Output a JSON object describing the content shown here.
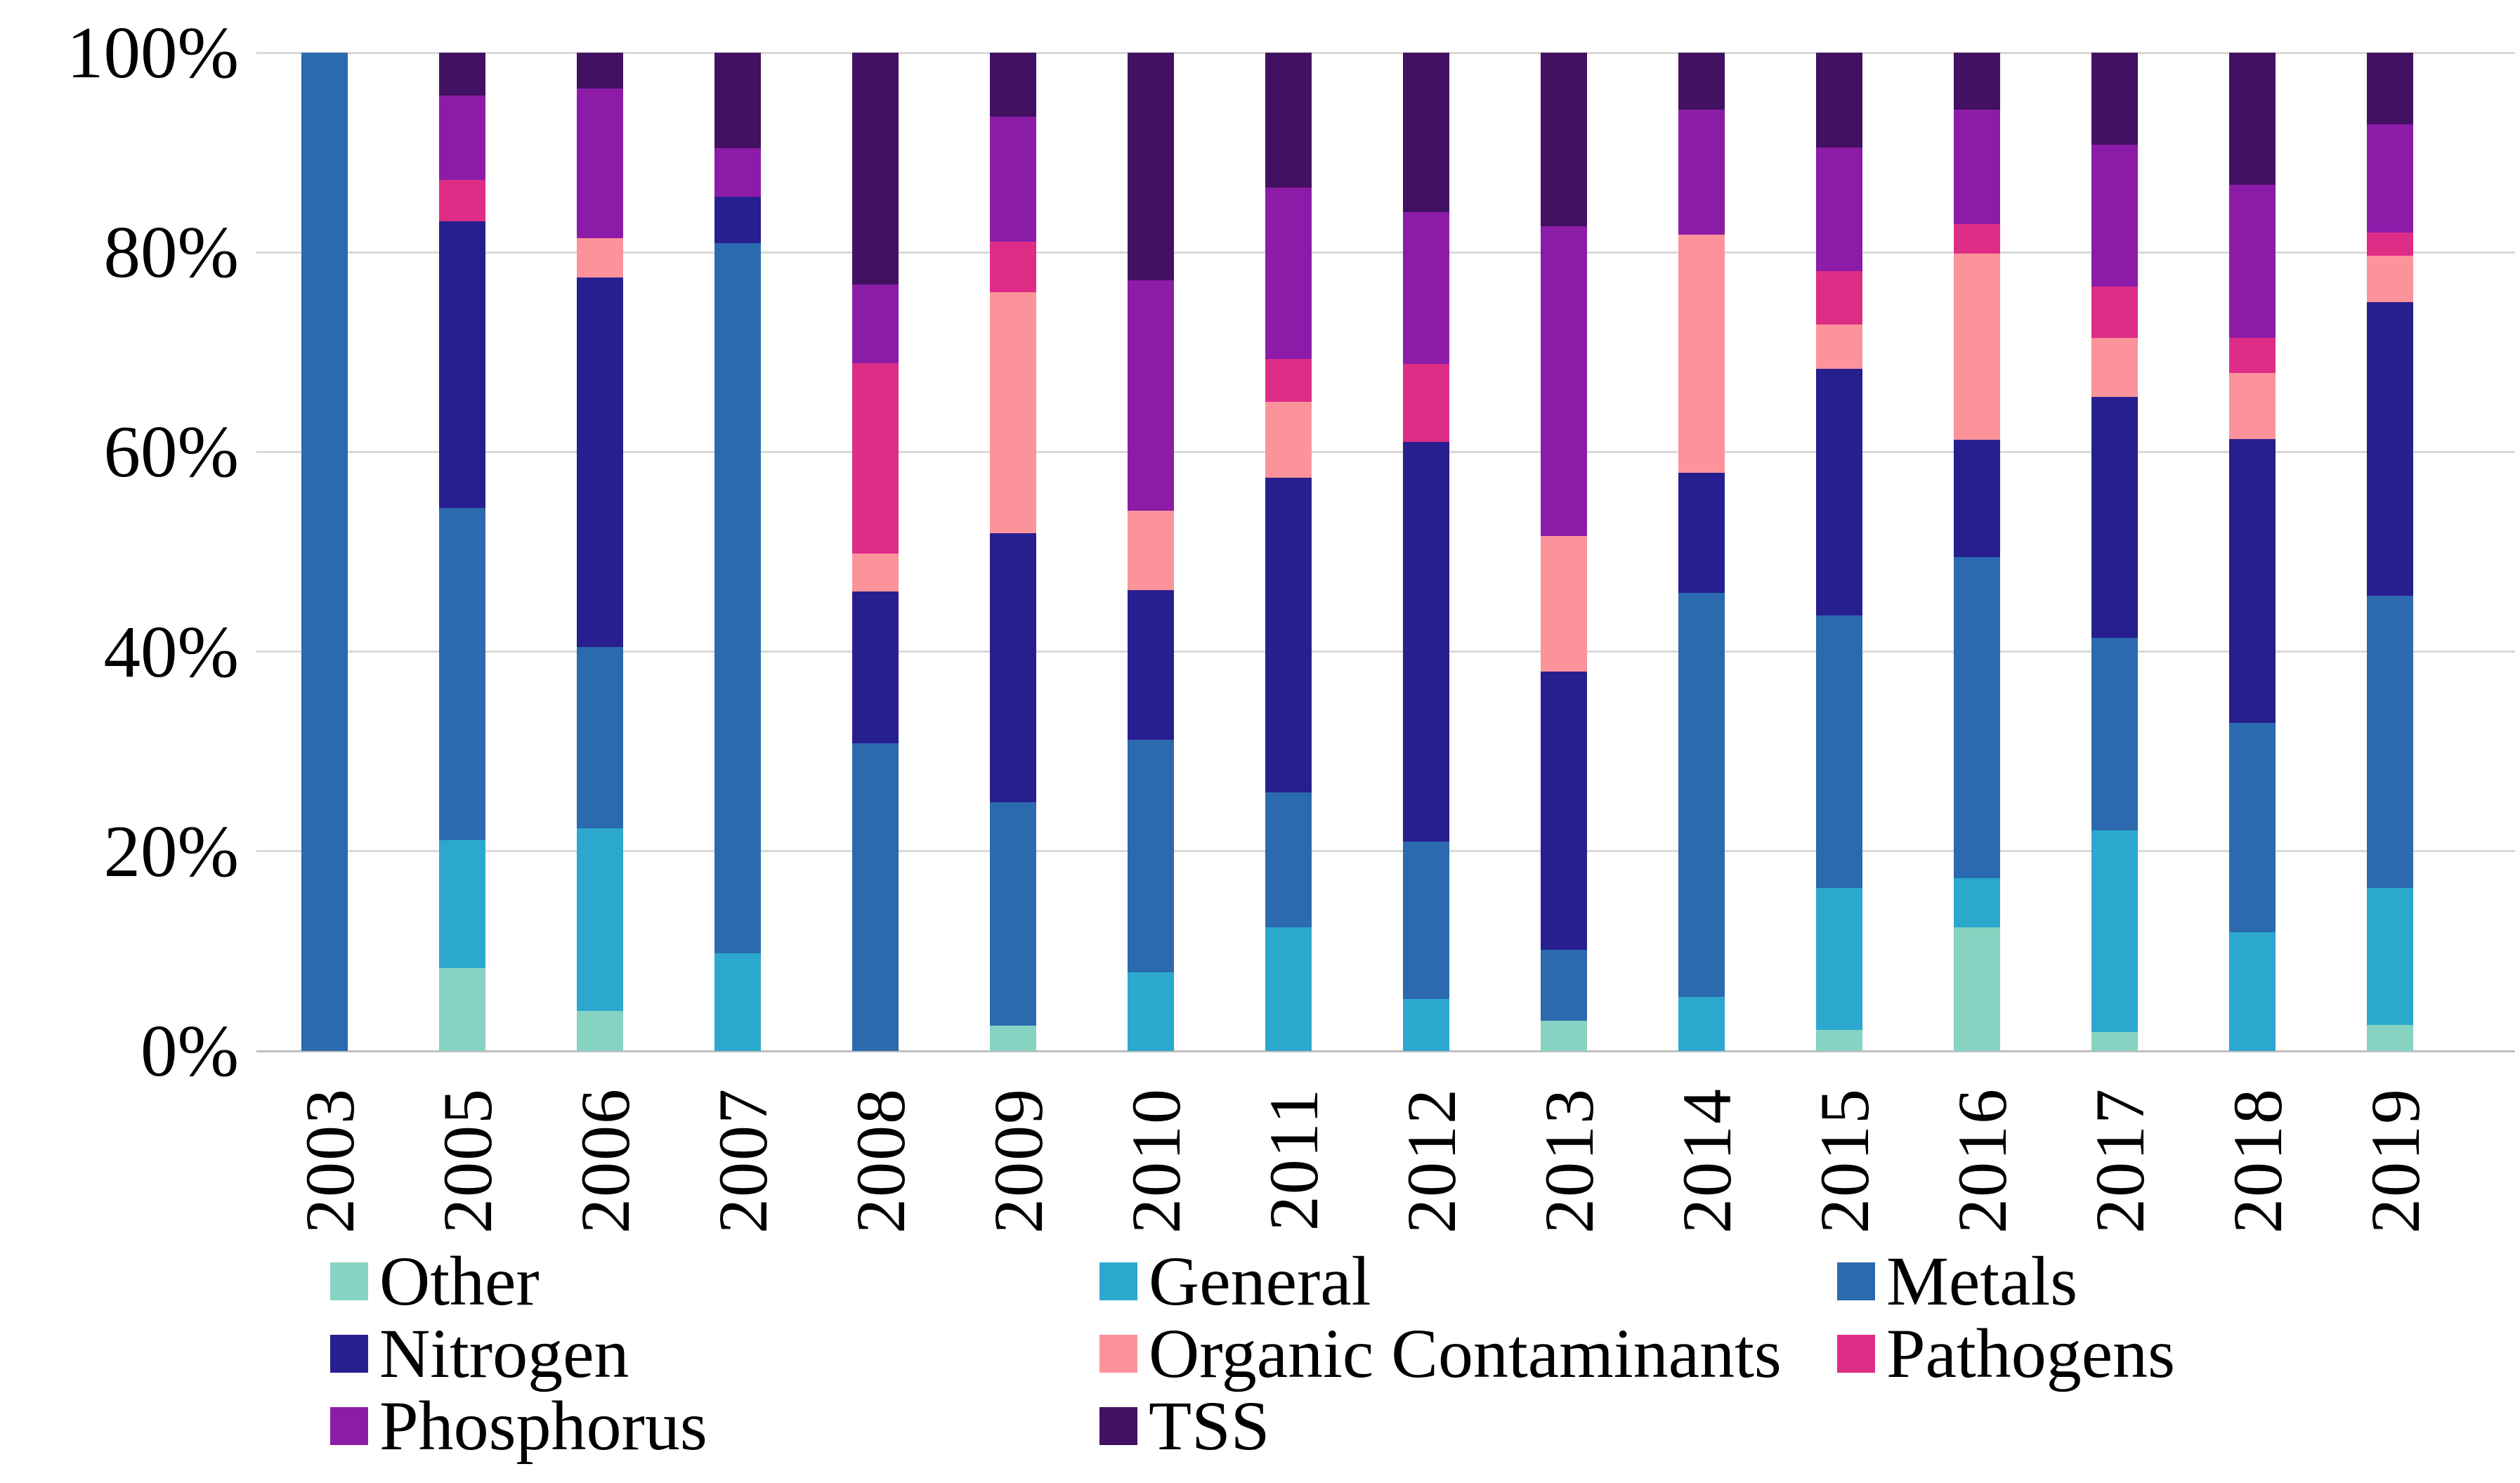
{
  "chart_data": {
    "type": "bar",
    "subtype": "100%-stacked-vertical",
    "title": "",
    "xlabel": "",
    "ylabel": "",
    "categories": [
      "2003",
      "2005",
      "2006",
      "2007",
      "2008",
      "2009",
      "2010",
      "2011",
      "2012",
      "2013",
      "2014",
      "2015",
      "2016",
      "2017",
      "2018",
      "2019"
    ],
    "series": [
      {
        "name": "Other",
        "color": "#86d3c1",
        "values": [
          0,
          8.3,
          4.0,
          0,
          0,
          2.5,
          0,
          0,
          0,
          3.0,
          0,
          2.1,
          12.4,
          1.9,
          0,
          2.6
        ]
      },
      {
        "name": "General",
        "color": "#2ca8ce",
        "values": [
          0,
          12.8,
          18.3,
          9.8,
          0,
          0,
          7.9,
          12.4,
          5.2,
          0,
          5.4,
          14.2,
          4.9,
          20.2,
          11.9,
          13.7
        ]
      },
      {
        "name": "Metals",
        "color": "#2b6aae",
        "values": [
          100,
          33.3,
          18.2,
          71.1,
          30.8,
          22.4,
          23.3,
          13.5,
          15.8,
          7.1,
          40.5,
          27.3,
          32.2,
          19.3,
          21.0,
          29.3
        ]
      },
      {
        "name": "Nitrogen",
        "color": "#271f8f",
        "values": [
          0,
          28.7,
          37.0,
          4.7,
          15.2,
          27.0,
          15.0,
          31.5,
          40.0,
          27.9,
          12.0,
          24.7,
          11.7,
          24.1,
          28.4,
          29.4
        ]
      },
      {
        "name": "Organic Contaminants",
        "color": "#fc939b",
        "values": [
          0,
          0,
          3.9,
          0,
          3.8,
          24.1,
          7.9,
          7.6,
          0,
          13.6,
          23.9,
          4.5,
          18.7,
          5.9,
          6.6,
          4.7
        ]
      },
      {
        "name": "Pathogens",
        "color": "#de2d87",
        "values": [
          0,
          4.2,
          0,
          0,
          19.1,
          5.1,
          0,
          4.3,
          7.8,
          0,
          0,
          5.3,
          2.9,
          5.2,
          3.5,
          2.3
        ]
      },
      {
        "name": "Phosphorus",
        "color": "#8c1ca8",
        "values": [
          0,
          8.4,
          15.0,
          4.8,
          7.9,
          12.5,
          23.1,
          17.2,
          15.2,
          31.0,
          12.5,
          12.4,
          11.5,
          14.2,
          15.4,
          10.8
        ]
      },
      {
        "name": "TSS",
        "color": "#421162",
        "values": [
          0,
          4.3,
          3.6,
          9.6,
          23.2,
          6.4,
          22.8,
          13.5,
          16.0,
          17.4,
          5.7,
          9.5,
          5.7,
          9.2,
          13.2,
          7.2
        ]
      }
    ],
    "y_axis": {
      "min": 0,
      "max": 100,
      "ticks": [
        "0%",
        "20%",
        "40%",
        "60%",
        "80%",
        "100%"
      ],
      "grid": true
    },
    "legend_position": "bottom",
    "legend_order": [
      "Other",
      "General",
      "Metals",
      "Nitrogen",
      "Organic Contaminants",
      "Pathogens",
      "Phosphorus",
      "TSS"
    ]
  }
}
